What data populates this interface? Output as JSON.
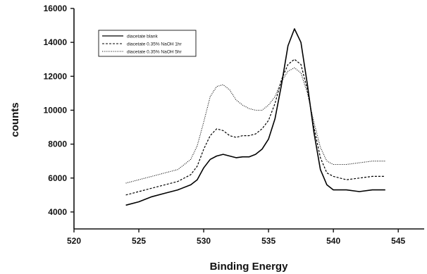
{
  "chart_data": {
    "type": "line",
    "title": "",
    "xlabel": "Binding Energy",
    "ylabel": "counts",
    "xlim": [
      520,
      547
    ],
    "ylim": [
      3000,
      16000
    ],
    "xticks": [
      520,
      525,
      530,
      535,
      540,
      545
    ],
    "yticks": [
      4000,
      6000,
      8000,
      10000,
      12000,
      14000,
      16000
    ],
    "grid": false,
    "legend_position": "top-left",
    "series": [
      {
        "name": "diacetate blank",
        "style": "solid",
        "color": "#000000",
        "x": [
          524,
          525,
          526,
          527,
          528,
          529,
          529.5,
          530,
          530.5,
          531,
          531.5,
          532,
          532.5,
          533,
          533.5,
          534,
          534.5,
          535,
          535.5,
          536,
          536.5,
          537,
          537.5,
          538,
          538.5,
          539,
          539.5,
          540,
          541,
          542,
          543,
          544
        ],
        "values": [
          4400,
          4600,
          4900,
          5100,
          5300,
          5600,
          5900,
          6600,
          7100,
          7300,
          7400,
          7300,
          7200,
          7250,
          7250,
          7400,
          7700,
          8300,
          9500,
          11500,
          13800,
          14800,
          14000,
          11500,
          8700,
          6500,
          5600,
          5300,
          5300,
          5200,
          5300,
          5300
        ]
      },
      {
        "name": "diacetate 0.35% NaOH 1hr",
        "style": "dashed",
        "color": "#000000",
        "x": [
          524,
          525,
          526,
          527,
          528,
          529,
          529.5,
          530,
          530.5,
          531,
          531.5,
          532,
          532.5,
          533,
          533.5,
          534,
          534.5,
          535,
          535.5,
          536,
          536.5,
          537,
          537.5,
          538,
          538.5,
          539,
          539.5,
          540,
          541,
          542,
          543,
          544
        ],
        "values": [
          5000,
          5200,
          5400,
          5600,
          5800,
          6200,
          6700,
          7700,
          8500,
          8900,
          8800,
          8500,
          8400,
          8500,
          8500,
          8600,
          8900,
          9400,
          10400,
          11800,
          12700,
          13000,
          12700,
          11200,
          9000,
          7200,
          6300,
          6100,
          5900,
          6000,
          6100,
          6100
        ]
      },
      {
        "name": "diacetate 0.35% NaOH 5hr",
        "style": "dotted",
        "color": "#000000",
        "x": [
          524,
          525,
          526,
          527,
          528,
          529,
          529.5,
          530,
          530.5,
          531,
          531.5,
          532,
          532.5,
          533,
          533.5,
          534,
          534.5,
          535,
          535.5,
          536,
          536.5,
          537,
          537.5,
          538,
          538.5,
          539,
          539.5,
          540,
          541,
          542,
          543,
          544
        ],
        "values": [
          5700,
          5900,
          6100,
          6300,
          6500,
          7100,
          7900,
          9300,
          10800,
          11400,
          11500,
          11200,
          10600,
          10300,
          10100,
          10000,
          10000,
          10300,
          10800,
          11700,
          12300,
          12500,
          12200,
          11000,
          9300,
          7800,
          7000,
          6800,
          6800,
          6900,
          7000,
          7000
        ]
      }
    ]
  }
}
